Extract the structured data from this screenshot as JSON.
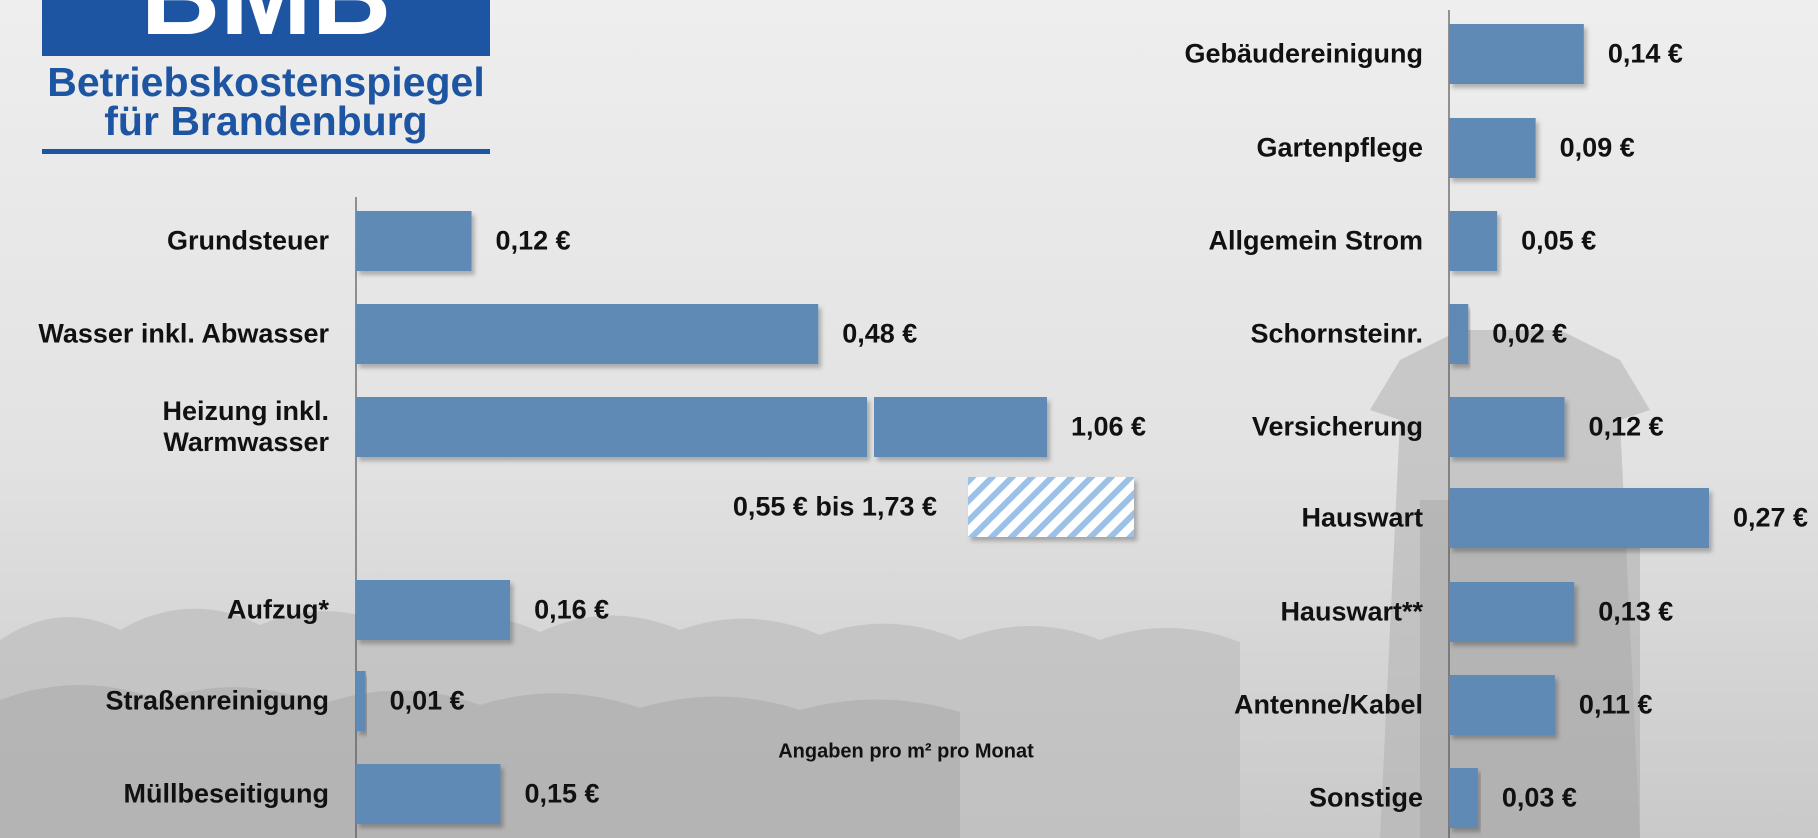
{
  "logo": {
    "mark": "BMB",
    "line1": "Betriebskostenspiegel",
    "line2": "für Brandenburg"
  },
  "footnote": "Angaben pro m² pro Monat",
  "chart_data": [
    {
      "type": "bar",
      "orientation": "horizontal",
      "color": "#5f8ab5",
      "categories": [
        "Grundsteuer",
        "Wasser inkl. Abwasser",
        "Heizung inkl. Warmwasser",
        null,
        "Aufzug*",
        "Straßenreinigung",
        "Müllbeseitigung"
      ],
      "values": [
        0.12,
        0.48,
        1.06,
        null,
        0.16,
        0.01,
        0.15
      ],
      "value_labels": [
        "0,12 €",
        "0,48 €",
        "1,06 €",
        null,
        "0,16 €",
        "0,01 €",
        "0,15 €"
      ],
      "range": {
        "low": 0.55,
        "high": 1.73,
        "label": "0,55 € bis 1,73 €",
        "color": "#9cc1e8"
      }
    },
    {
      "type": "bar",
      "orientation": "horizontal",
      "color": "#5f8ab5",
      "categories": [
        "Gebäudereinigung",
        "Gartenpflege",
        "Allgemein Strom",
        "Schornsteinr.",
        "Versicherung",
        "Hauswart",
        "Hauswart**",
        "Antenne/Kabel",
        "Sonstige"
      ],
      "values": [
        0.14,
        0.09,
        0.05,
        0.02,
        0.12,
        0.27,
        0.13,
        0.11,
        0.03
      ],
      "value_labels": [
        "0,14 €",
        "0,09 €",
        "0,05 €",
        "0,02 €",
        "0,12 €",
        "0,27 €",
        "0,13 €",
        "0,11 €",
        "0,03 €"
      ]
    }
  ]
}
